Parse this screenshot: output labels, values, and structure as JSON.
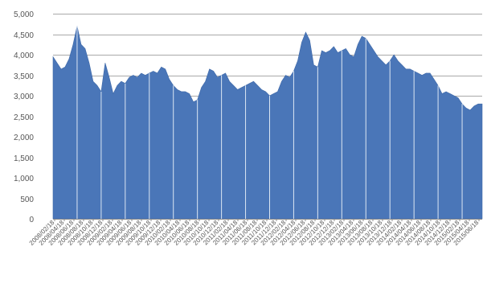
{
  "chart_data": {
    "type": "area",
    "title": "",
    "xlabel": "",
    "ylabel": "",
    "ylim": [
      0,
      5000
    ],
    "grid": true,
    "legend": "none",
    "colors": {
      "fill": "#4a76b8",
      "gap": "#dbe6f3",
      "grid": "#a9a9a9"
    },
    "y_ticks": [
      {
        "value": 0,
        "label": "0"
      },
      {
        "value": 500,
        "label": "500"
      },
      {
        "value": 1000,
        "label": "1,000"
      },
      {
        "value": 1500,
        "label": "1,500"
      },
      {
        "value": 2000,
        "label": "2,000"
      },
      {
        "value": 2500,
        "label": "2,500"
      },
      {
        "value": 3000,
        "label": "3,000"
      },
      {
        "value": 3500,
        "label": "3,500"
      },
      {
        "value": 4000,
        "label": "4,000"
      },
      {
        "value": 4500,
        "label": "4,500"
      },
      {
        "value": 5000,
        "label": "5,000"
      }
    ],
    "x_tick_labels": [
      "2008/02/18",
      "2008/04/18",
      "2008/06/18",
      "2008/08/18",
      "2008/10/18",
      "2008/12/18",
      "2009/02/18",
      "2009/04/18",
      "2009/06/18",
      "2009/08/18",
      "2009/10/18",
      "2009/12/18",
      "2010/02/18",
      "2010/04/18",
      "2010/06/18",
      "2010/08/18",
      "2010/10/18",
      "2010/12/18",
      "2011/02/18",
      "2011/04/18",
      "2011/06/18",
      "2011/08/18",
      "2011/10/18",
      "2011/12/18",
      "2012/02/18",
      "2012/04/18",
      "2012/06/18",
      "2012/08/18",
      "2012/10/18",
      "2012/12/18",
      "2013/02/18",
      "2013/04/18",
      "2013/06/18",
      "2013/08/18",
      "2013/10/18",
      "2013/12/18",
      "2014/02/18",
      "2014/04/18",
      "2014/06/18",
      "2014/08/18",
      "2014/10/18",
      "2014/12/18",
      "2015/02/18",
      "2015/04/18",
      "2015/06/18"
    ],
    "values": [
      3950,
      3800,
      3650,
      3700,
      3900,
      4250,
      4700,
      4250,
      4150,
      3800,
      3350,
      3250,
      3100,
      3800,
      3450,
      3050,
      3250,
      3350,
      3300,
      3450,
      3500,
      3450,
      3550,
      3500,
      3550,
      3600,
      3550,
      3700,
      3650,
      3400,
      3250,
      3150,
      3100,
      3100,
      3050,
      2850,
      2900,
      3200,
      3350,
      3650,
      3600,
      3450,
      3500,
      3550,
      3350,
      3250,
      3150,
      3200,
      3250,
      3300,
      3350,
      3250,
      3150,
      3100,
      3000,
      3050,
      3100,
      3350,
      3500,
      3450,
      3600,
      3850,
      4300,
      4550,
      4350,
      3750,
      3700,
      4100,
      4050,
      4100,
      4200,
      4050,
      4100,
      4150,
      4000,
      3950,
      4250,
      4450,
      4400,
      4250,
      4100,
      3950,
      3850,
      3750,
      3850,
      4000,
      3850,
      3750,
      3650,
      3650,
      3600,
      3550,
      3500,
      3550,
      3550,
      3400,
      3250,
      3050,
      3100,
      3050,
      3000,
      2950,
      2800,
      2700,
      2650,
      2750,
      2800,
      2800
    ]
  }
}
